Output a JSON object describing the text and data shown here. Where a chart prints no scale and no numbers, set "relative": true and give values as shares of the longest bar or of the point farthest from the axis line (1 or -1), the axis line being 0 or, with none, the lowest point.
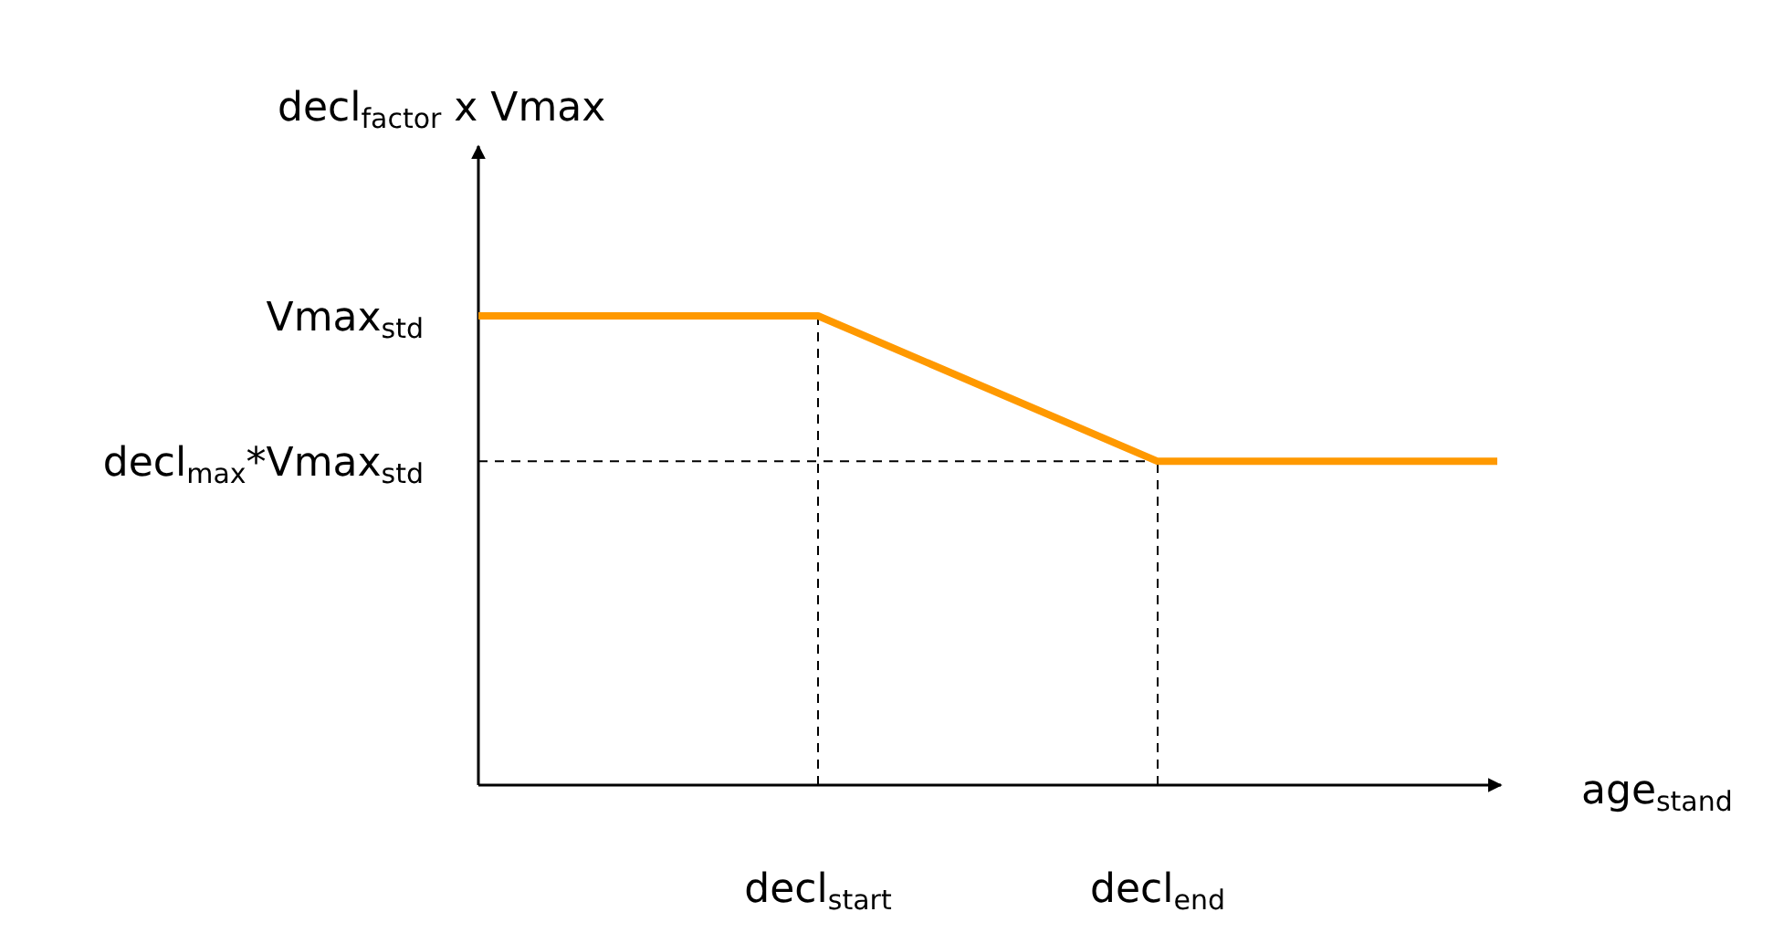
{
  "chart_data": {
    "type": "line",
    "relative": true,
    "xlabel": "age$_{stand}$",
    "ylabel": "decl$_{factor}$ x Vmax",
    "categories": [
      null,
      "decl$_{start}$",
      "decl$_{end}$",
      null
    ],
    "series": [
      {
        "color": "#ff9900",
        "values": [
          1,
          1,
          0.69,
          0.69
        ]
      }
    ],
    "annotations": [
      "Vmax$_{std}$",
      "decl$_{max}$*Vmax$_{std}$"
    ],
    "ref_lines": [
      {
        "axis": "y",
        "value": 0.69,
        "line_style": "dashed",
        "color": "#000000"
      }
    ],
    "marker": "none",
    "line_style": "solid"
  }
}
